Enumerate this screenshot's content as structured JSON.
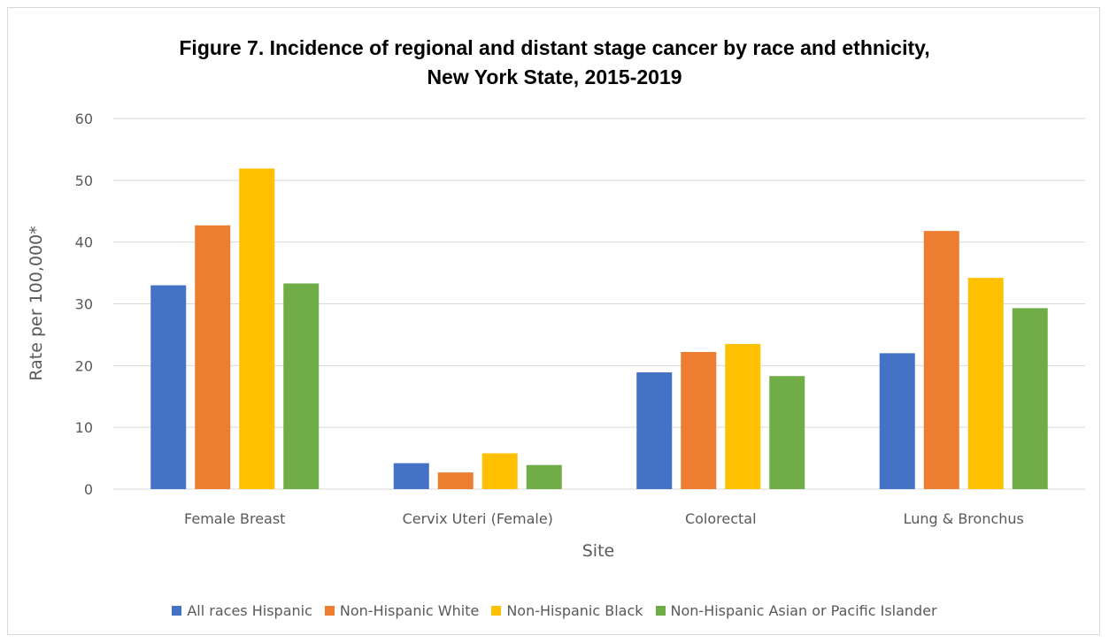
{
  "chart_data": {
    "type": "bar",
    "title_line1": "Figure 7. Incidence of regional and distant stage cancer by race and ethnicity,",
    "title_line2": "New York State, 2015-2019",
    "xlabel": "Site",
    "ylabel": "Rate per 100,000*",
    "ylim": [
      0,
      60
    ],
    "yticks": [
      0,
      10,
      20,
      30,
      40,
      50,
      60
    ],
    "grid": true,
    "legend_position": "bottom",
    "categories": [
      "Female Breast",
      "Cervix Uteri (Female)",
      "Colorectal",
      "Lung & Bronchus"
    ],
    "series": [
      {
        "name": "All races Hispanic",
        "color": "#4472C4",
        "values": [
          33.0,
          4.2,
          18.9,
          22.0
        ]
      },
      {
        "name": "Non-Hispanic White",
        "color": "#ED7D31",
        "values": [
          42.7,
          2.7,
          22.2,
          41.8
        ]
      },
      {
        "name": "Non-Hispanic Black",
        "color": "#FFC000",
        "values": [
          51.9,
          5.8,
          23.5,
          34.2
        ]
      },
      {
        "name": "Non-Hispanic Asian or Pacific Islander",
        "color": "#70AD47",
        "values": [
          33.3,
          3.9,
          18.3,
          29.3
        ]
      }
    ]
  }
}
